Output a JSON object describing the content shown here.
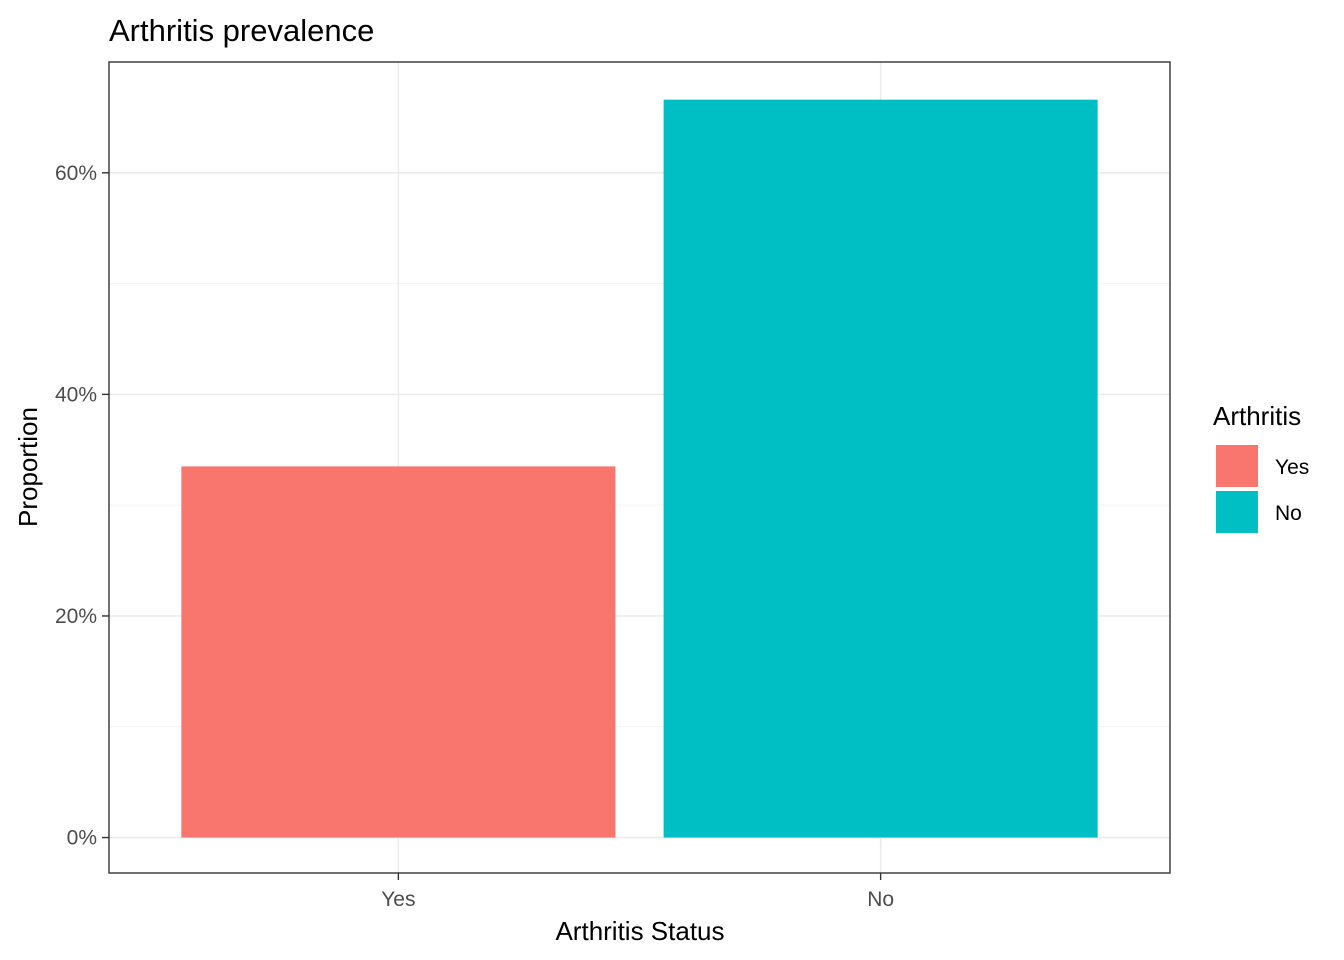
{
  "chart_data": {
    "type": "bar",
    "title": "Arthritis prevalence",
    "xlabel": "Arthritis Status",
    "ylabel": "Proportion",
    "categories": [
      "Yes",
      "No"
    ],
    "values": [
      0.335,
      0.666
    ],
    "colors": [
      "#F8766D",
      "#00BFC4"
    ],
    "ylim": [
      -0.032,
      0.7
    ],
    "yticks": [
      0,
      0.2,
      0.4,
      0.6
    ],
    "ytick_labels": [
      "0%",
      "20%",
      "40%",
      "60%"
    ],
    "grid": true,
    "legend": {
      "title": "Arthritis",
      "placement": "right",
      "entries": [
        "Yes",
        "No"
      ]
    }
  }
}
